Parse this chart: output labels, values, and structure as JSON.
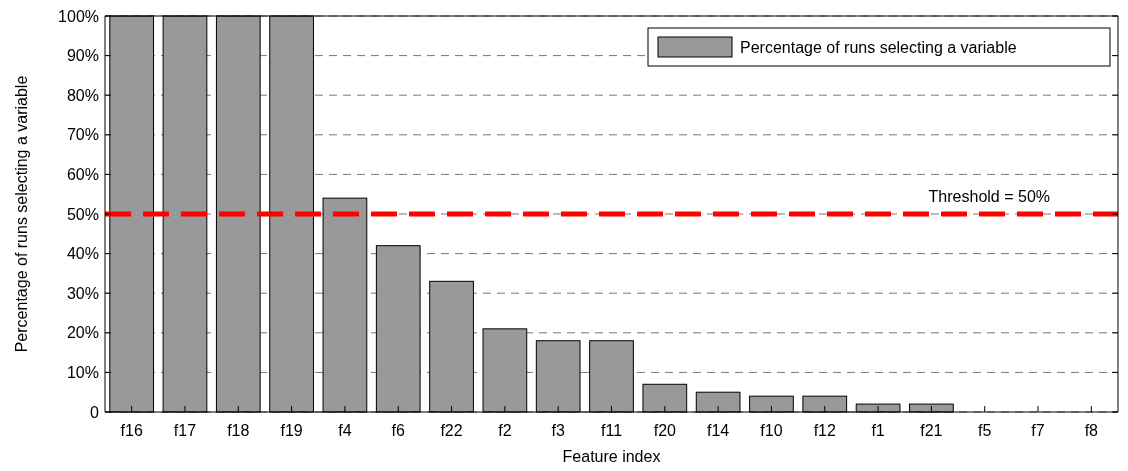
{
  "chart_data": {
    "type": "bar",
    "xlabel": "Feature index",
    "ylabel": "Percentage of runs selecting a variable",
    "categories": [
      "f16",
      "f17",
      "f18",
      "f19",
      "f4",
      "f6",
      "f22",
      "f2",
      "f3",
      "f11",
      "f20",
      "f14",
      "f10",
      "f12",
      "f1",
      "f21",
      "f5",
      "f7",
      "f8"
    ],
    "series": [
      {
        "name": "Percentage of runs selecting a variable",
        "color": "#999999",
        "values": [
          100,
          100,
          100,
          100,
          54,
          42,
          33,
          21,
          18,
          18,
          7,
          5,
          4,
          4,
          2,
          2,
          0,
          0,
          0
        ]
      }
    ],
    "ylim": [
      0,
      100
    ],
    "yticks": [
      {
        "value": 0,
        "label": "0"
      },
      {
        "value": 10,
        "label": "10%"
      },
      {
        "value": 20,
        "label": "20%"
      },
      {
        "value": 30,
        "label": "30%"
      },
      {
        "value": 40,
        "label": "40%"
      },
      {
        "value": 50,
        "label": "50%"
      },
      {
        "value": 60,
        "label": "60%"
      },
      {
        "value": 70,
        "label": "70%"
      },
      {
        "value": 80,
        "label": "80%"
      },
      {
        "value": 90,
        "label": "90%"
      },
      {
        "value": 100,
        "label": "100%"
      }
    ],
    "grid": "y",
    "legend": "top right",
    "ref_lines": [
      {
        "axis": "y",
        "value": 50,
        "label": "Threshold = 50%",
        "color": "#ff0000",
        "line_style": "dashed"
      }
    ]
  }
}
